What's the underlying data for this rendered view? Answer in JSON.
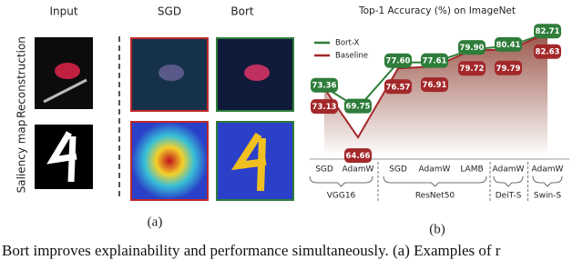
{
  "panel_a": {
    "columns": [
      "Input",
      "SGD",
      "Bort"
    ],
    "rows": [
      "Reconstruction",
      "Saliency map"
    ],
    "caption": "(a)"
  },
  "chart_data": {
    "type": "line",
    "title": "Top-1 Accuracy (%) on ImageNet",
    "categories": [
      "SGD",
      "AdamW",
      "SGD",
      "AdamW",
      "LAMB",
      "AdamW",
      "AdamW"
    ],
    "groups": [
      "VGG16",
      "ResNet50",
      "DeiT-S",
      "Swin-S"
    ],
    "series": [
      {
        "name": "Bort-X",
        "color": "#2e7d3a",
        "values": [
          73.36,
          69.75,
          77.6,
          77.61,
          79.9,
          80.41,
          82.71
        ],
        "value_labels": [
          "73.36",
          "69.75",
          "77.60",
          "77.61",
          "79.90",
          "80.41",
          "82.71"
        ]
      },
      {
        "name": "Baseline",
        "color": "#a3282a",
        "values": [
          73.13,
          64.66,
          76.57,
          76.91,
          79.72,
          79.79,
          82.63
        ],
        "value_labels": [
          "73.13",
          "64.66",
          "76.57",
          "76.91",
          "79.72",
          "79.79",
          "82.63"
        ]
      }
    ],
    "ylim": [
      62,
      84
    ],
    "legend": "upper-left",
    "caption": "(b)"
  },
  "caption": "Bort improves explainability and performance simultaneously. (a) Examples of r"
}
